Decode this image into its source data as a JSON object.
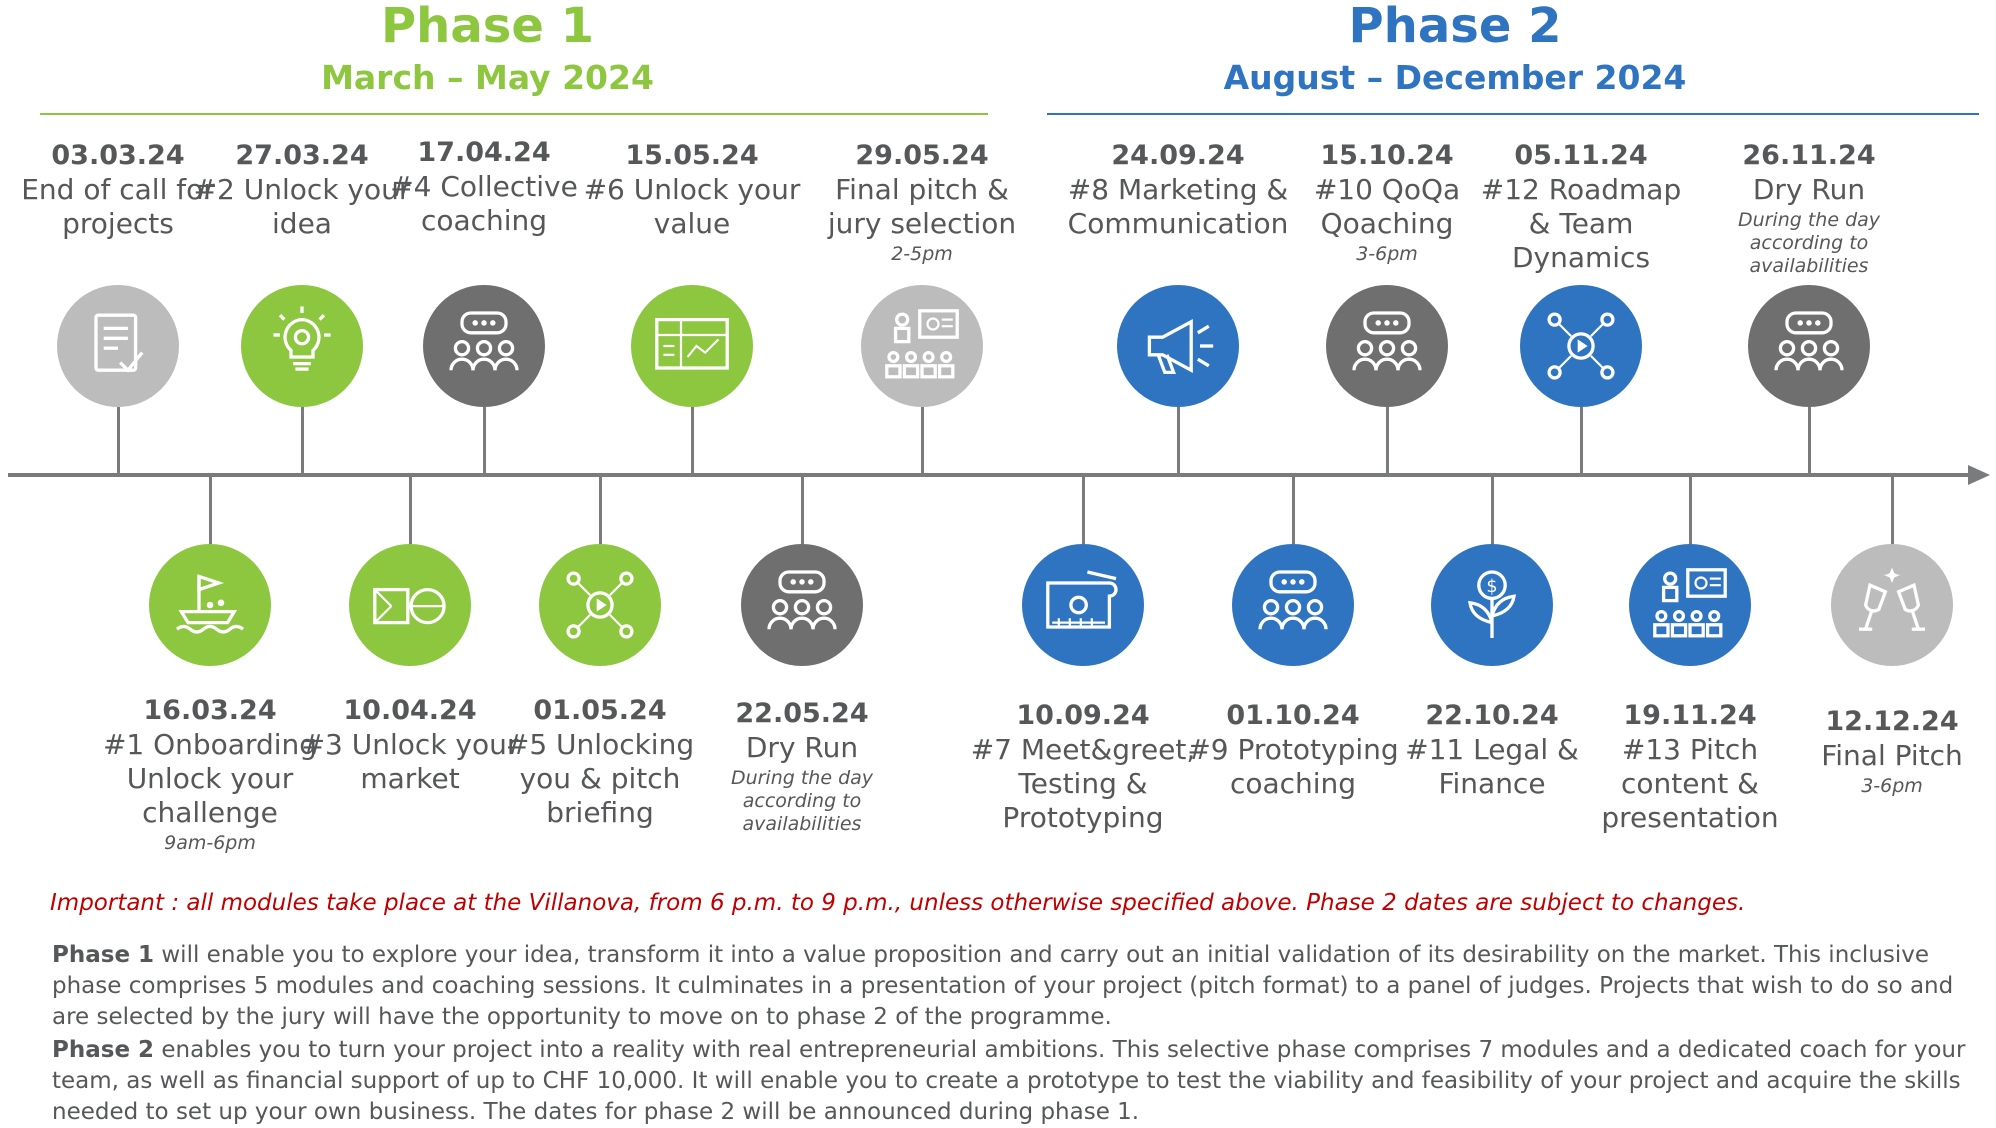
{
  "phase1": {
    "title": "Phase 1",
    "period": "March – May 2024",
    "color": "#8dc63f"
  },
  "phase2": {
    "title": "Phase 2",
    "period": "August – December 2024",
    "color": "#2f74c0"
  },
  "events": [
    {
      "date": "03.03.24",
      "name": "End of call for projects",
      "time": "",
      "icon": "document-check-icon",
      "color": "#bcbcbc"
    },
    {
      "date": "16.03.24",
      "name": "#1 Onboarding Unlock your challenge",
      "time": "9am-6pm",
      "icon": "boat-flag-icon",
      "color": "#8dc63f"
    },
    {
      "date": "27.03.24",
      "name": "#2 Unlock your idea",
      "time": "",
      "icon": "lightbulb-gear-icon",
      "color": "#8dc63f"
    },
    {
      "date": "10.04.24",
      "name": "#3 Unlock your market",
      "time": "",
      "icon": "square-circle-icon",
      "color": "#8dc63f"
    },
    {
      "date": "17.04.24",
      "name": "#4 Collective coaching",
      "time": "",
      "icon": "group-chat-icon",
      "color": "#6f6f6f"
    },
    {
      "date": "01.05.24",
      "name": "#5 Unlocking you & pitch briefing",
      "time": "",
      "icon": "network-play-icon",
      "color": "#8dc63f"
    },
    {
      "date": "15.05.24",
      "name": "#6 Unlock your value",
      "time": "",
      "icon": "whiteboard-icon",
      "color": "#8dc63f"
    },
    {
      "date": "22.05.24",
      "name": "Dry Run",
      "time": "During the day according to availabilities",
      "icon": "group-chat-icon",
      "color": "#6f6f6f"
    },
    {
      "date": "29.05.24",
      "name": "Final pitch & jury selection",
      "time": "2-5pm",
      "icon": "presentation-audience-icon",
      "color": "#bcbcbc"
    },
    {
      "date": "10.09.24",
      "name": "#7  Meet&greet, Testing & Prototyping",
      "time": "",
      "icon": "blueprint-icon",
      "color": "#2f74c0"
    },
    {
      "date": "24.09.24",
      "name": "#8 Marketing & Communication",
      "time": "",
      "icon": "megaphone-icon",
      "color": "#2f74c0"
    },
    {
      "date": "01.10.24",
      "name": "#9 Prototyping coaching",
      "time": "",
      "icon": "group-chat-icon",
      "color": "#2f74c0"
    },
    {
      "date": "15.10.24",
      "name": "#10 QoQa Qoaching",
      "time": "3-6pm",
      "icon": "group-chat-icon",
      "color": "#6f6f6f"
    },
    {
      "date": "22.10.24",
      "name": "#11 Legal & Finance",
      "time": "",
      "icon": "money-plant-icon",
      "color": "#2f74c0"
    },
    {
      "date": "05.11.24",
      "name": "#12 Roadmap & Team Dynamics",
      "time": "",
      "icon": "network-play-icon",
      "color": "#2f74c0"
    },
    {
      "date": "19.11.24",
      "name": "#13 Pitch content & presentation",
      "time": "",
      "icon": "presentation-audience-icon",
      "color": "#2f74c0"
    },
    {
      "date": "26.11.24",
      "name": "Dry Run",
      "time": "During the day according to availabilities",
      "icon": "group-chat-icon",
      "color": "#6f6f6f"
    },
    {
      "date": "12.12.24",
      "name": "Final Pitch",
      "time": "3-6pm",
      "icon": "champagne-toast-icon",
      "color": "#bcbcbc"
    }
  ],
  "important": "Important : all modules take place at the Villanova, from 6 p.m. to 9 p.m., unless otherwise specified above. Phase 2 dates are subject to changes.",
  "paragraph1": {
    "lead": "Phase 1",
    "text": " will enable you to explore your idea, transform it into a value proposition and carry out an initial validation of its desirability on the market. This inclusive phase comprises 5 modules and coaching sessions. It culminates in a presentation of your project (pitch format) to a panel of judges. Projects that wish to do so and are selected by the jury will have the opportunity to move on to phase 2 of the programme."
  },
  "paragraph2": {
    "lead": "Phase 2",
    "text": " enables you to turn your project into a reality with real entrepreneurial ambitions. This selective phase comprises 7 modules and a dedicated coach for your team, as well as financial support of up to CHF 10,000. It will enable you to create a prototype to test the viability and feasibility of your project and acquire the skills needed to set up your own business. The dates for phase 2 will be announced during phase 1."
  }
}
